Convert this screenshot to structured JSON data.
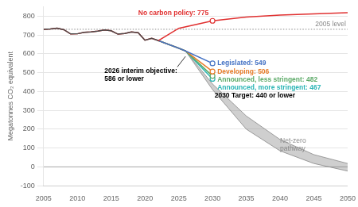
{
  "chart_data": {
    "type": "line",
    "ylabel": "Megatonnes CO₂ equivalent",
    "xlim": [
      2005,
      2050
    ],
    "ylim": [
      -100,
      850
    ],
    "xticks": [
      2005,
      2010,
      2015,
      2020,
      2025,
      2030,
      2035,
      2040,
      2045,
      2050
    ],
    "yticks": [
      -100,
      0,
      100,
      200,
      300,
      400,
      500,
      600,
      700,
      800
    ],
    "grid": true,
    "series": [
      {
        "color": "#4a4a4a",
        "x": [
          2005,
          2006,
          2007,
          2008,
          2009,
          2010,
          2011,
          2012,
          2013,
          2014,
          2015,
          2016,
          2017,
          2018,
          2019,
          2020,
          2021,
          2022
        ],
        "values": [
          730,
          732,
          736,
          728,
          705,
          706,
          714,
          716,
          720,
          726,
          722,
          704,
          708,
          716,
          712,
          672,
          682,
          670
        ]
      },
      {
        "name": "No carbon policy: 775",
        "color": "#e03030",
        "x": [
          2005,
          2006,
          2007,
          2008,
          2009,
          2010,
          2011,
          2012,
          2013,
          2014,
          2015,
          2016,
          2017,
          2018,
          2019,
          2020,
          2021,
          2022,
          2025,
          2030,
          2035,
          2040,
          2045,
          2050
        ],
        "values": [
          730,
          732,
          736,
          728,
          705,
          706,
          714,
          716,
          720,
          726,
          722,
          704,
          708,
          716,
          712,
          672,
          682,
          670,
          735,
          775,
          795,
          805,
          812,
          818
        ],
        "markers": [
          {
            "x": 2030,
            "y": 775
          }
        ]
      },
      {
        "name": "Legislated: 549",
        "color": "#4472c4",
        "x": [
          2022,
          2025,
          2026,
          2030
        ],
        "values": [
          670,
          630,
          615,
          549
        ],
        "markers": [
          {
            "x": 2030,
            "y": 549
          }
        ]
      },
      {
        "name": "Developing: 506",
        "color": "#e87d2a",
        "x": [
          2022,
          2025,
          2026,
          2030
        ],
        "values": [
          670,
          630,
          615,
          506
        ],
        "markers": [
          {
            "x": 2030,
            "y": 506
          }
        ]
      },
      {
        "name": "Announced, less stringent: 482",
        "color": "#5daa68",
        "x": [
          2022,
          2025,
          2026,
          2030
        ],
        "values": [
          670,
          630,
          615,
          482
        ],
        "markers": [
          {
            "x": 2030,
            "y": 482
          }
        ]
      },
      {
        "name": "Announced, more stringent: 467",
        "color": "#2ab5b5",
        "x": [
          2022,
          2025,
          2026,
          2030
        ],
        "values": [
          670,
          630,
          615,
          467
        ],
        "markers": [
          {
            "x": 2030,
            "y": 467
          }
        ]
      },
      {
        "type": "band",
        "color": "#888888",
        "x": [
          2025,
          2026,
          2030,
          2035,
          2040,
          2045,
          2050
        ],
        "upper": [
          630,
          615,
          440,
          270,
          145,
          65,
          18
        ],
        "lower": [
          630,
          615,
          410,
          200,
          85,
          18,
          -22
        ]
      }
    ],
    "reference_lines": [
      {
        "y": 730,
        "label": "2005 level",
        "color": "#888888",
        "line_style": "dotted"
      },
      {
        "y": 0,
        "color": "#aaaaaa"
      }
    ],
    "annotations": [
      {
        "text": "2026 interim objective:\n586 or lower",
        "x": 2014,
        "y": 488,
        "point": [
          2026,
          586
        ]
      },
      {
        "text": "2030 Target: 440 or lower",
        "x": 2030.3,
        "y": 420
      },
      {
        "text": "Net-zero\npathway",
        "x": 2040,
        "y": 118,
        "color": "#888888"
      }
    ]
  }
}
